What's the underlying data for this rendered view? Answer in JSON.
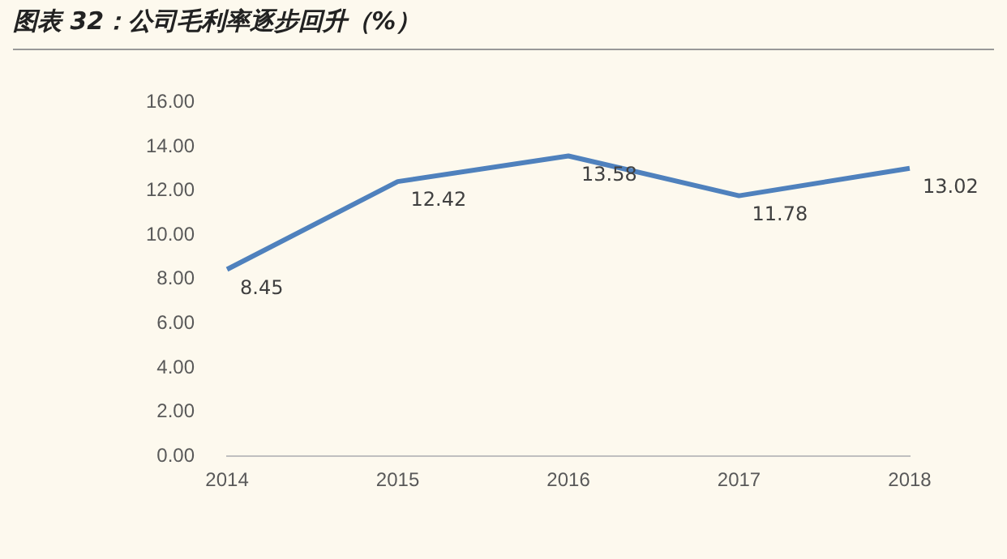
{
  "chart_data": {
    "type": "line",
    "title": "图表 32：公司毛利率逐步回升（%）",
    "categories": [
      "2014",
      "2015",
      "2016",
      "2017",
      "2018"
    ],
    "series": [
      {
        "color": "#4f81bd",
        "values": [
          8.45,
          12.42,
          13.58,
          11.78,
          13.02
        ]
      }
    ],
    "ylim": [
      0,
      16
    ],
    "yticks": [
      {
        "value": 0,
        "label": "0.00"
      },
      {
        "value": 2,
        "label": "2.00"
      },
      {
        "value": 4,
        "label": "4.00"
      },
      {
        "value": 6,
        "label": "6.00"
      },
      {
        "value": 8,
        "label": "8.00"
      },
      {
        "value": 10,
        "label": "10.00"
      },
      {
        "value": 12,
        "label": "12.00"
      },
      {
        "value": 14,
        "label": "14.00"
      },
      {
        "value": 16,
        "label": "16.00"
      }
    ],
    "data_labels": true,
    "grid": false,
    "legend": false,
    "marker": "none",
    "line_style": "solid"
  }
}
